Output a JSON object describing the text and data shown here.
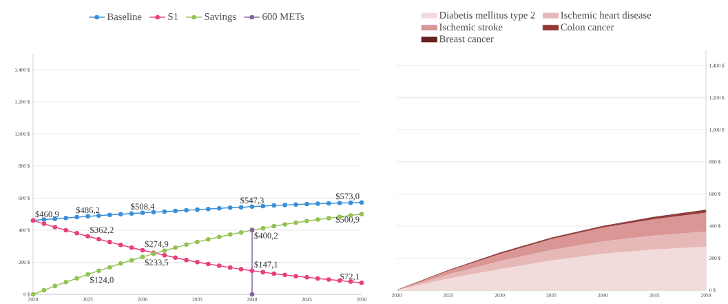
{
  "chart_data": [
    {
      "type": "line",
      "x": [
        2020,
        2021,
        2022,
        2023,
        2024,
        2025,
        2026,
        2027,
        2028,
        2029,
        2030,
        2031,
        2032,
        2033,
        2034,
        2035,
        2036,
        2037,
        2038,
        2039,
        2040,
        2041,
        2042,
        2043,
        2044,
        2045,
        2046,
        2047,
        2048,
        2049,
        2050
      ],
      "series": [
        {
          "name": "Baseline",
          "color": "#3a8fd9",
          "values": [
            460.9,
            466,
            471,
            476,
            481,
            486.2,
            491,
            495,
            500,
            504,
            508.4,
            512,
            516,
            520,
            524,
            528,
            532,
            536,
            540,
            543,
            547.3,
            550,
            554,
            557,
            560,
            563,
            565,
            567,
            569,
            571,
            573.0
          ],
          "value_labels": [
            "$460,9",
            null,
            null,
            null,
            null,
            "$486,2",
            null,
            null,
            null,
            null,
            "$508,4",
            null,
            null,
            null,
            null,
            null,
            null,
            null,
            null,
            null,
            "$547,3",
            null,
            null,
            null,
            null,
            null,
            null,
            null,
            null,
            null,
            "$573,0"
          ]
        },
        {
          "name": "S1",
          "color": "#e8407a",
          "values": [
            460.9,
            440,
            419,
            400,
            381,
            362.2,
            344,
            326,
            308,
            291,
            274.9,
            259,
            244,
            229,
            214,
            201,
            189,
            178,
            167,
            157,
            147.1,
            138,
            129,
            121,
            113,
            106,
            99,
            92,
            86,
            79,
            72.1
          ],
          "value_labels": [
            null,
            null,
            null,
            null,
            null,
            "$362,2",
            null,
            null,
            null,
            null,
            "$274,9",
            null,
            null,
            null,
            null,
            null,
            null,
            null,
            null,
            null,
            "$147,1",
            null,
            null,
            null,
            null,
            null,
            null,
            null,
            null,
            null,
            "$72,1"
          ]
        },
        {
          "name": "Savings",
          "color": "#92c353",
          "values": [
            0,
            26,
            52,
            76,
            100,
            124.0,
            147,
            169,
            192,
            213,
            233.5,
            253,
            272,
            291,
            310,
            327,
            343,
            358,
            373,
            386,
            400.2,
            412,
            425,
            436,
            447,
            457,
            466,
            475,
            483,
            492,
            500.9
          ],
          "value_labels": [
            null,
            null,
            null,
            null,
            null,
            "$124,0",
            null,
            null,
            null,
            null,
            "$233,5",
            null,
            null,
            null,
            null,
            null,
            null,
            null,
            null,
            null,
            null,
            null,
            null,
            null,
            null,
            null,
            null,
            null,
            null,
            null,
            "$500,9"
          ]
        },
        {
          "name": "600 METs",
          "color": "#8064a2",
          "x": [
            2040,
            2040
          ],
          "values": [
            0,
            400.2
          ],
          "value_labels": [
            null,
            "$400,2"
          ]
        }
      ],
      "xlim": [
        2020,
        2050
      ],
      "xticks": [
        2020,
        2025,
        2030,
        2035,
        2040,
        2045,
        2050
      ],
      "ylim": [
        0,
        1500
      ],
      "yticks": [
        {
          "value": 0,
          "label": "0 $"
        },
        {
          "value": 200,
          "label": "200 $"
        },
        {
          "value": 400,
          "label": "400 $"
        },
        {
          "value": 600,
          "label": "600 $"
        },
        {
          "value": 800,
          "label": "800 $"
        },
        {
          "value": 1000,
          "label": "1.000 $"
        },
        {
          "value": 1200,
          "label": "1.200 $"
        },
        {
          "value": 1400,
          "label": "1.400 $"
        }
      ],
      "grid": "y",
      "legend": "top",
      "marker": "circle",
      "line_style": "solid"
    },
    {
      "type": "area",
      "stacked": true,
      "x": [
        2020,
        2025,
        2030,
        2035,
        2040,
        2045,
        2050
      ],
      "series": [
        {
          "name": "Diabetis mellitus type 2",
          "color": "#f2dcdb",
          "values": [
            0,
            72,
            130,
            185,
            227,
            253,
            270
          ]
        },
        {
          "name": "Ischemic heart disease",
          "color": "#e6b9b8",
          "values": [
            0,
            26,
            50,
            65,
            77,
            88,
            95
          ]
        },
        {
          "name": "Ischemic stroke",
          "color": "#d99694",
          "values": [
            0,
            22,
            45,
            68,
            86,
            102,
            118
          ]
        },
        {
          "name": "Colon cancer",
          "color": "#953735",
          "values": [
            0,
            3,
            6,
            6,
            7,
            10,
            13
          ]
        },
        {
          "name": "Breast cancer",
          "color": "#632423",
          "values": [
            0,
            1,
            2,
            3,
            3,
            4,
            5
          ]
        }
      ],
      "xlim": [
        2020,
        2050
      ],
      "xticks": [
        2020,
        2025,
        2030,
        2035,
        2040,
        2045,
        2050
      ],
      "ylim": [
        0,
        1500
      ],
      "yticks": [
        {
          "value": 0,
          "label": "0 $"
        },
        {
          "value": 200,
          "label": "200 $"
        },
        {
          "value": 400,
          "label": "400 $"
        },
        {
          "value": 600,
          "label": "600 $"
        },
        {
          "value": 800,
          "label": "800 $"
        },
        {
          "value": 1000,
          "label": "1.000 $"
        },
        {
          "value": 1200,
          "label": "1.200 $"
        },
        {
          "value": 1400,
          "label": "1.400 $"
        }
      ],
      "grid": "y",
      "legend": "top",
      "marker": "none"
    }
  ]
}
